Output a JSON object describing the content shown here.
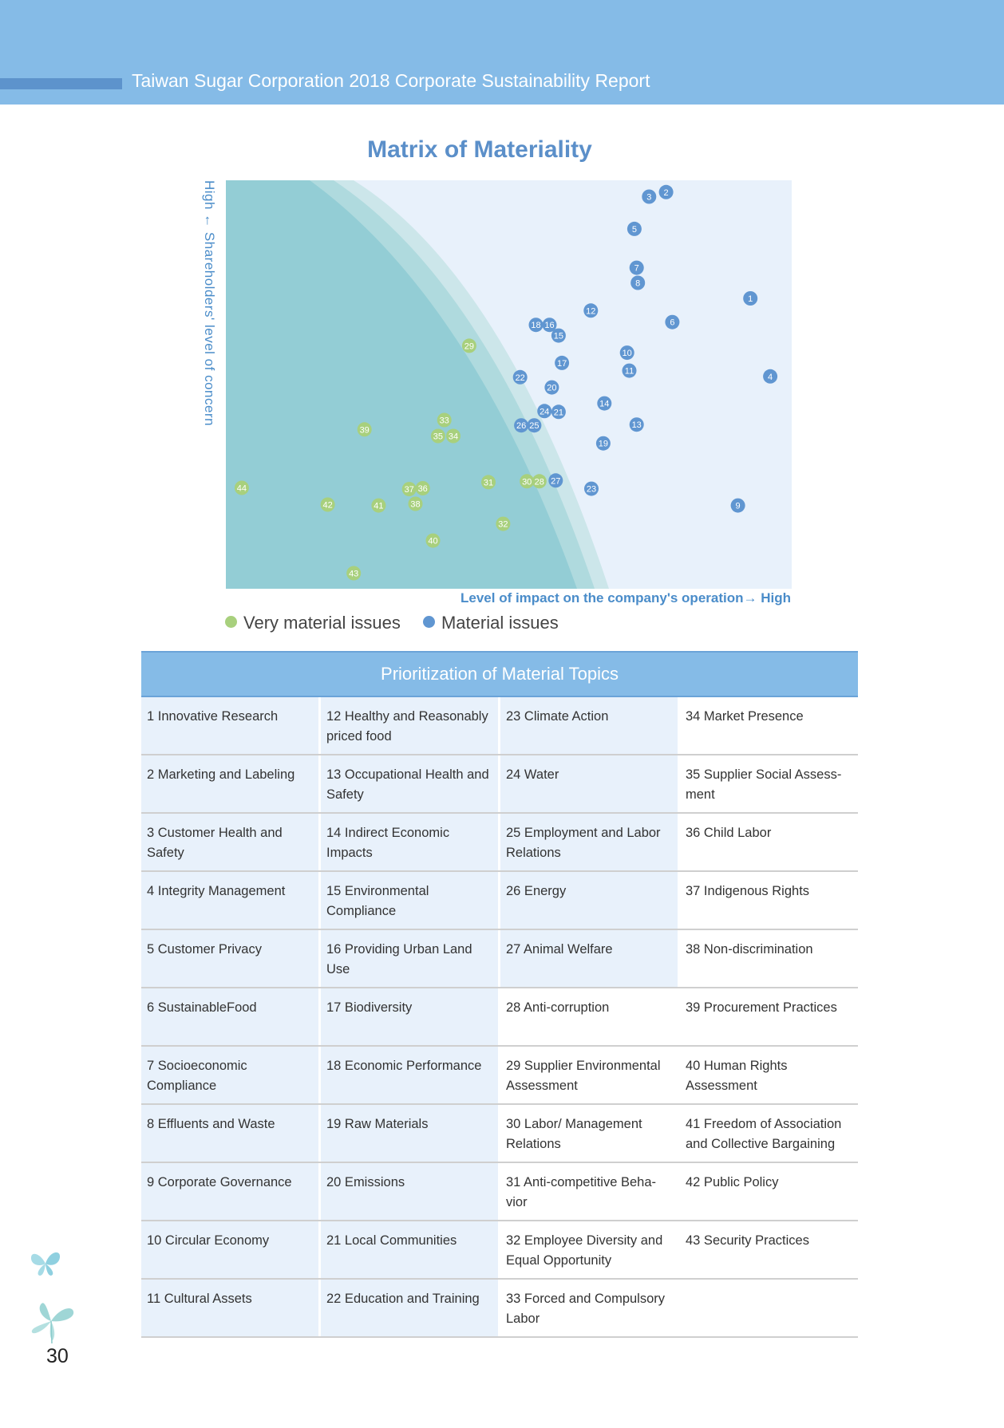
{
  "header": {
    "title": "Taiwan Sugar Corporation 2018 Corporate Sustainability Report",
    "background_color": "#85bbe7"
  },
  "chart_data": {
    "type": "scatter",
    "title": "Matrix of Materiality",
    "xlabel": "Level of impact on the company's operation→ High",
    "ylabel": "High ← Shareholders'  level of concern",
    "xlim": [
      0,
      100
    ],
    "ylim": [
      0,
      100
    ],
    "legend_position": "bottom-left",
    "series": [
      {
        "name": "Very material issues",
        "color": "#a8d07d",
        "points": [
          {
            "label": "29",
            "x": 43.0,
            "y": 59.5
          },
          {
            "label": "33",
            "x": 38.6,
            "y": 41.3
          },
          {
            "label": "34",
            "x": 40.2,
            "y": 37.4
          },
          {
            "label": "35",
            "x": 37.5,
            "y": 37.4
          },
          {
            "label": "39",
            "x": 24.5,
            "y": 39.0
          },
          {
            "label": "44",
            "x": 2.8,
            "y": 24.7
          },
          {
            "label": "42",
            "x": 18.0,
            "y": 20.6
          },
          {
            "label": "41",
            "x": 27.0,
            "y": 20.4
          },
          {
            "label": "38",
            "x": 33.5,
            "y": 20.8
          },
          {
            "label": "37",
            "x": 32.4,
            "y": 24.4
          },
          {
            "label": "36",
            "x": 34.8,
            "y": 24.6
          },
          {
            "label": "31",
            "x": 46.4,
            "y": 26.1
          },
          {
            "label": "30",
            "x": 53.2,
            "y": 26.3
          },
          {
            "label": "28",
            "x": 55.4,
            "y": 26.3
          },
          {
            "label": "32",
            "x": 49.0,
            "y": 15.9
          },
          {
            "label": "40",
            "x": 36.6,
            "y": 11.8
          },
          {
            "label": "43",
            "x": 22.6,
            "y": 3.8
          }
        ]
      },
      {
        "name": "Material issues",
        "color": "#6096d1",
        "points": [
          {
            "label": "2",
            "x": 77.8,
            "y": 97.1
          },
          {
            "label": "3",
            "x": 74.8,
            "y": 96.0
          },
          {
            "label": "5",
            "x": 72.2,
            "y": 88.1
          },
          {
            "label": "7",
            "x": 72.6,
            "y": 78.6
          },
          {
            "label": "8",
            "x": 72.8,
            "y": 74.9
          },
          {
            "label": "1",
            "x": 92.7,
            "y": 71.1
          },
          {
            "label": "12",
            "x": 64.5,
            "y": 68.1
          },
          {
            "label": "6",
            "x": 78.9,
            "y": 65.3
          },
          {
            "label": "18",
            "x": 54.8,
            "y": 64.6
          },
          {
            "label": "16",
            "x": 57.2,
            "y": 64.6
          },
          {
            "label": "15",
            "x": 58.8,
            "y": 62.0
          },
          {
            "label": "10",
            "x": 70.9,
            "y": 57.8
          },
          {
            "label": "17",
            "x": 59.4,
            "y": 55.3
          },
          {
            "label": "11",
            "x": 71.3,
            "y": 53.4
          },
          {
            "label": "4",
            "x": 96.2,
            "y": 52.0
          },
          {
            "label": "22",
            "x": 52.0,
            "y": 51.8
          },
          {
            "label": "20",
            "x": 57.6,
            "y": 49.3
          },
          {
            "label": "14",
            "x": 66.9,
            "y": 45.4
          },
          {
            "label": "24",
            "x": 56.3,
            "y": 43.5
          },
          {
            "label": "21",
            "x": 58.8,
            "y": 43.3
          },
          {
            "label": "13",
            "x": 72.6,
            "y": 40.2
          },
          {
            "label": "26",
            "x": 52.2,
            "y": 40.0
          },
          {
            "label": "25",
            "x": 54.5,
            "y": 40.0
          },
          {
            "label": "19",
            "x": 66.7,
            "y": 35.6
          },
          {
            "label": "27",
            "x": 58.3,
            "y": 26.5
          },
          {
            "label": "23",
            "x": 64.6,
            "y": 24.5
          },
          {
            "label": "9",
            "x": 90.5,
            "y": 20.4
          }
        ]
      }
    ]
  },
  "legend": [
    {
      "label": "Very material issues",
      "color": "#a8d07d"
    },
    {
      "label": "Material issues",
      "color": "#6096d1"
    }
  ],
  "table": {
    "title": "Prioritization of Material Topics",
    "rows": [
      [
        "1 Innovative Research",
        "12 Healthy and Reasonably priced food",
        "23 Climate Action",
        "34 Market Presence"
      ],
      [
        "2 Marketing and Labeling",
        "13 Occupational Health and Safety",
        "24 Water",
        "35 Supplier Social Assess-ment"
      ],
      [
        "3 Customer Health and Safety",
        "14 Indirect Economic Impacts",
        "25 Employment and Labor Relations",
        "36 Child Labor"
      ],
      [
        "4 Integrity Management",
        "15 Environmental Compliance",
        "26 Energy",
        "37 Indigenous Rights"
      ],
      [
        "5 Customer Privacy",
        "16 Providing Urban Land Use",
        "27 Animal Welfare",
        "38 Non-discrimination"
      ],
      [
        "6 SustainableFood",
        "17 Biodiversity",
        "28 Anti-corruption",
        "39 Procurement Practices"
      ],
      [
        "7 Socioeconomic Compliance",
        "18 Economic Performance",
        "29 Supplier Environmental Assessment",
        "40 Human Rights Assessment"
      ],
      [
        "8 Effluents and Waste",
        "19 Raw Materials",
        "30 Labor/ Management Relations",
        "41 Freedom of Association and Collective Bargaining"
      ],
      [
        "9 Corporate Governance",
        "20 Emissions",
        "31 Anti-competitive Beha-vior",
        "42 Public Policy"
      ],
      [
        "10 Circular Economy",
        "21 Local Communities",
        "32 Employee Diversity and Equal Opportunity",
        "43 Security Practices"
      ],
      [
        "11 Cultural Assets",
        "22 Education and Training",
        "33 Forced and Compulsory Labor",
        ""
      ]
    ]
  },
  "page_number": "30",
  "decorations": {
    "icons": [
      "butterfly-icon",
      "butterfly-icon"
    ]
  }
}
